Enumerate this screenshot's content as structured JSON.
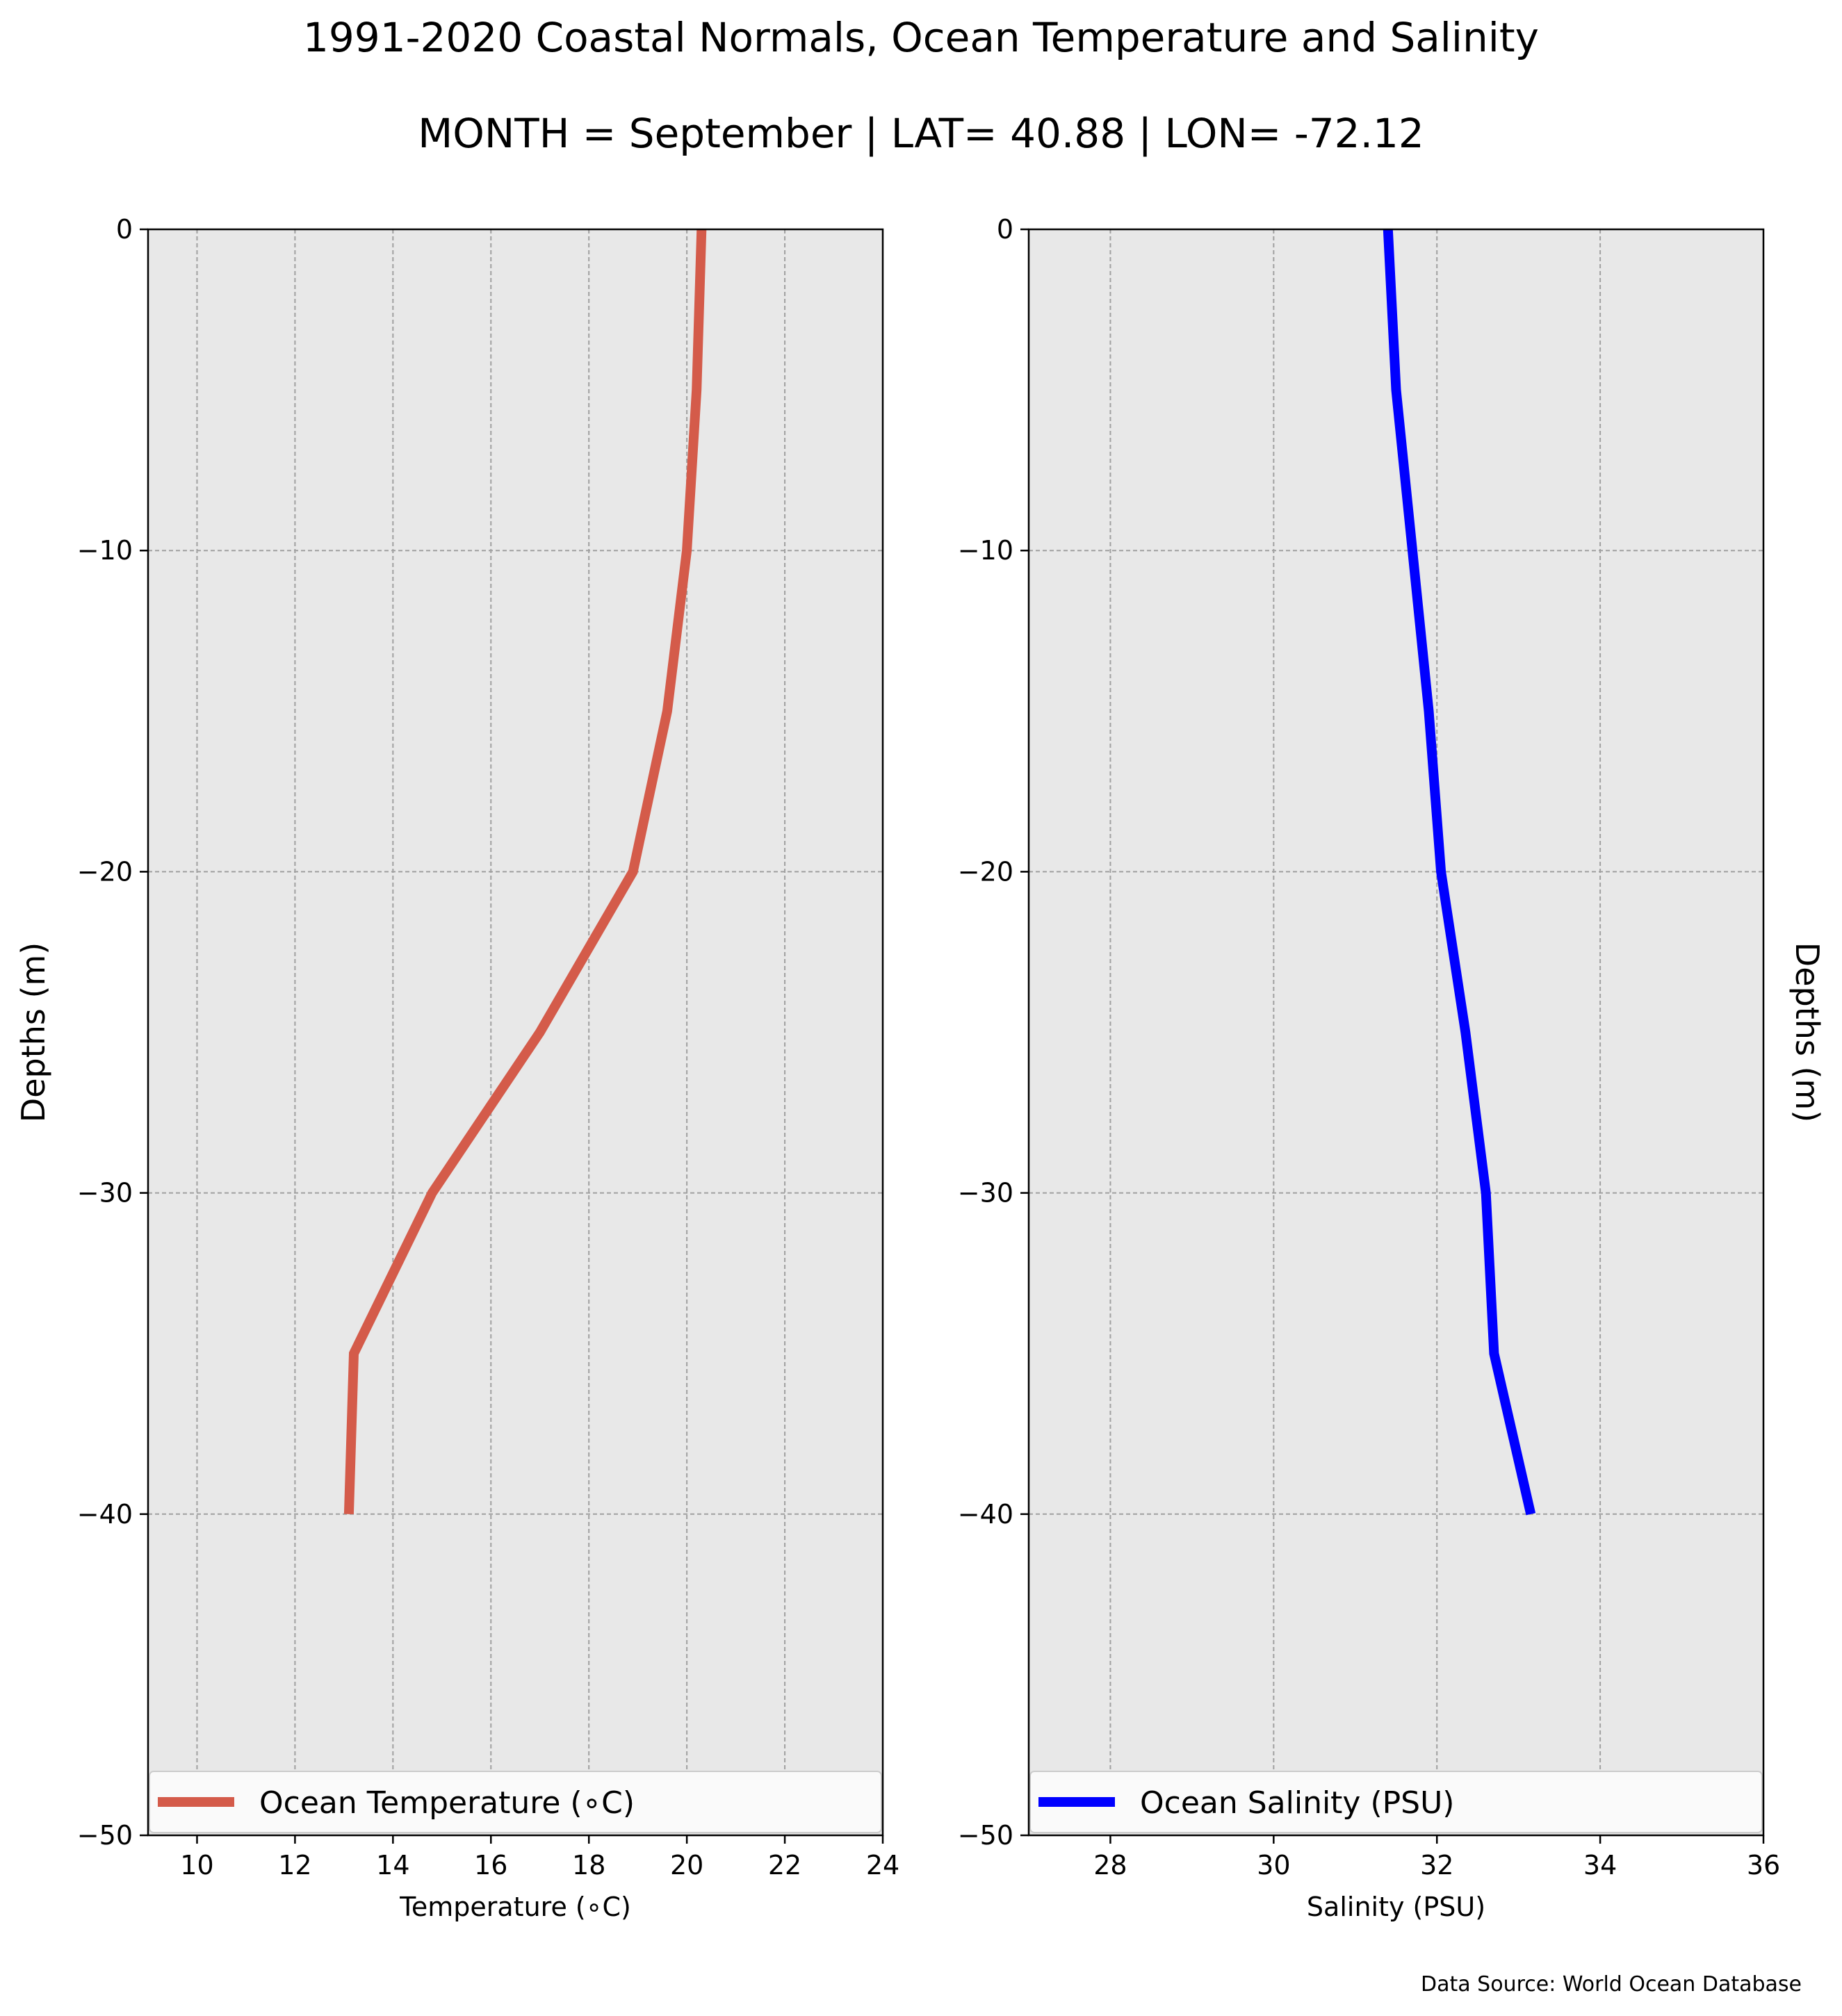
{
  "title": "1991-2020 Coastal Normals, Ocean Temperature and Salinity",
  "subtitle": "MONTH = September | LAT= 40.88 | LON= -72.12",
  "source_note": "Data Source: World Ocean Database",
  "chart_data": [
    {
      "type": "line",
      "xlabel": "Temperature (∘C)",
      "ylabel": "Depths (m)",
      "xlim": [
        9,
        24
      ],
      "ylim": [
        -50,
        0
      ],
      "xticks": [
        10,
        12,
        14,
        16,
        18,
        20,
        22,
        24
      ],
      "yticks": [
        0,
        -10,
        -20,
        -30,
        -40,
        -50
      ],
      "grid": true,
      "legend_position": "bottom",
      "series": [
        {
          "name": "Ocean Temperature (∘C)",
          "color": "#d45b4a",
          "x": [
            20.3,
            20.2,
            20.0,
            19.6,
            18.9,
            17.0,
            14.8,
            13.2,
            13.1
          ],
          "y": [
            0,
            -5,
            -10,
            -15,
            -20,
            -25,
            -30,
            -35,
            -40
          ]
        }
      ]
    },
    {
      "type": "line",
      "xlabel": "Salinity (PSU)",
      "ylabel": "Depths (m)",
      "xlim": [
        27,
        36
      ],
      "ylim": [
        -50,
        0
      ],
      "xticks": [
        28,
        30,
        32,
        34,
        36
      ],
      "yticks": [
        0,
        -10,
        -20,
        -30,
        -40,
        -50
      ],
      "grid": true,
      "legend_position": "bottom",
      "series": [
        {
          "name": "Ocean Salinity (PSU)",
          "color": "#0000ff",
          "x": [
            31.4,
            31.5,
            31.7,
            31.9,
            32.05,
            32.35,
            32.6,
            32.7,
            33.15
          ],
          "y": [
            0,
            -5,
            -10,
            -15,
            -20,
            -25,
            -30,
            -35,
            -40
          ]
        }
      ]
    }
  ]
}
